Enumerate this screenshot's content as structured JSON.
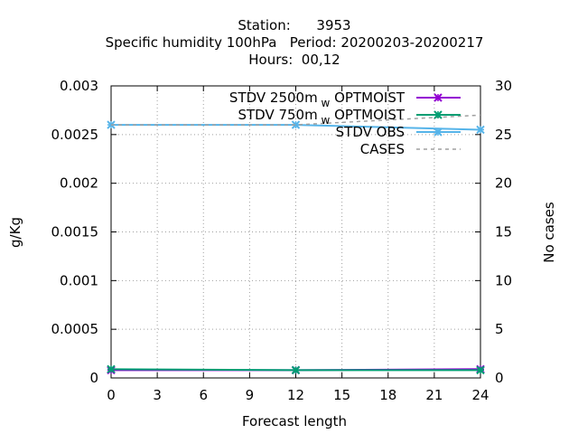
{
  "chart_data": {
    "type": "line",
    "title_lines": [
      "Station:      3953",
      "Specific humidity 100hPa   Period: 20200203-20200217",
      "Hours:  00,12"
    ],
    "xlabel": "Forecast length",
    "ylabel": "g/Kg",
    "y2label": "No cases",
    "xlim": [
      0,
      24
    ],
    "ylim": [
      0,
      0.003
    ],
    "y2lim": [
      0,
      30
    ],
    "xticks": [
      "0",
      "3",
      "6",
      "9",
      "12",
      "15",
      "18",
      "21",
      "24"
    ],
    "yticks": [
      "0",
      "0.0005",
      "0.001",
      "0.0015",
      "0.002",
      "0.0025",
      "0.003"
    ],
    "y2ticks": [
      "0",
      "5",
      "10",
      "15",
      "20",
      "25",
      "30"
    ],
    "grid": true,
    "legend_position": "top-right",
    "x": [
      0,
      12,
      24
    ],
    "series": [
      {
        "name": "STDV 2500m_w OPTMOIST",
        "legend_main": "STDV 2500m",
        "legend_sub": "w",
        "legend_tail": " OPTMOIST",
        "axis": "left",
        "color": "#9400d3",
        "marker": "x",
        "values": [
          8e-05,
          8e-05,
          9e-05
        ]
      },
      {
        "name": "STDV 750m_w OPTMOIST",
        "legend_main": "STDV 750m",
        "legend_sub": "w",
        "legend_tail": " OPTMOIST",
        "axis": "left",
        "color": "#009e73",
        "marker": "x",
        "values": [
          9e-05,
          8e-05,
          8e-05
        ]
      },
      {
        "name": "STDV OBS",
        "legend_main": "STDV OBS",
        "legend_sub": "",
        "legend_tail": "",
        "axis": "left",
        "color": "#56b4e9",
        "marker": "x",
        "values": [
          0.0026,
          0.0026,
          0.00255
        ]
      },
      {
        "name": "CASES",
        "legend_main": "CASES",
        "legend_sub": "",
        "legend_tail": "",
        "axis": "right",
        "color": "#a0a0a0",
        "marker": "none",
        "dashed": true,
        "values": [
          26,
          26,
          27
        ]
      }
    ]
  }
}
